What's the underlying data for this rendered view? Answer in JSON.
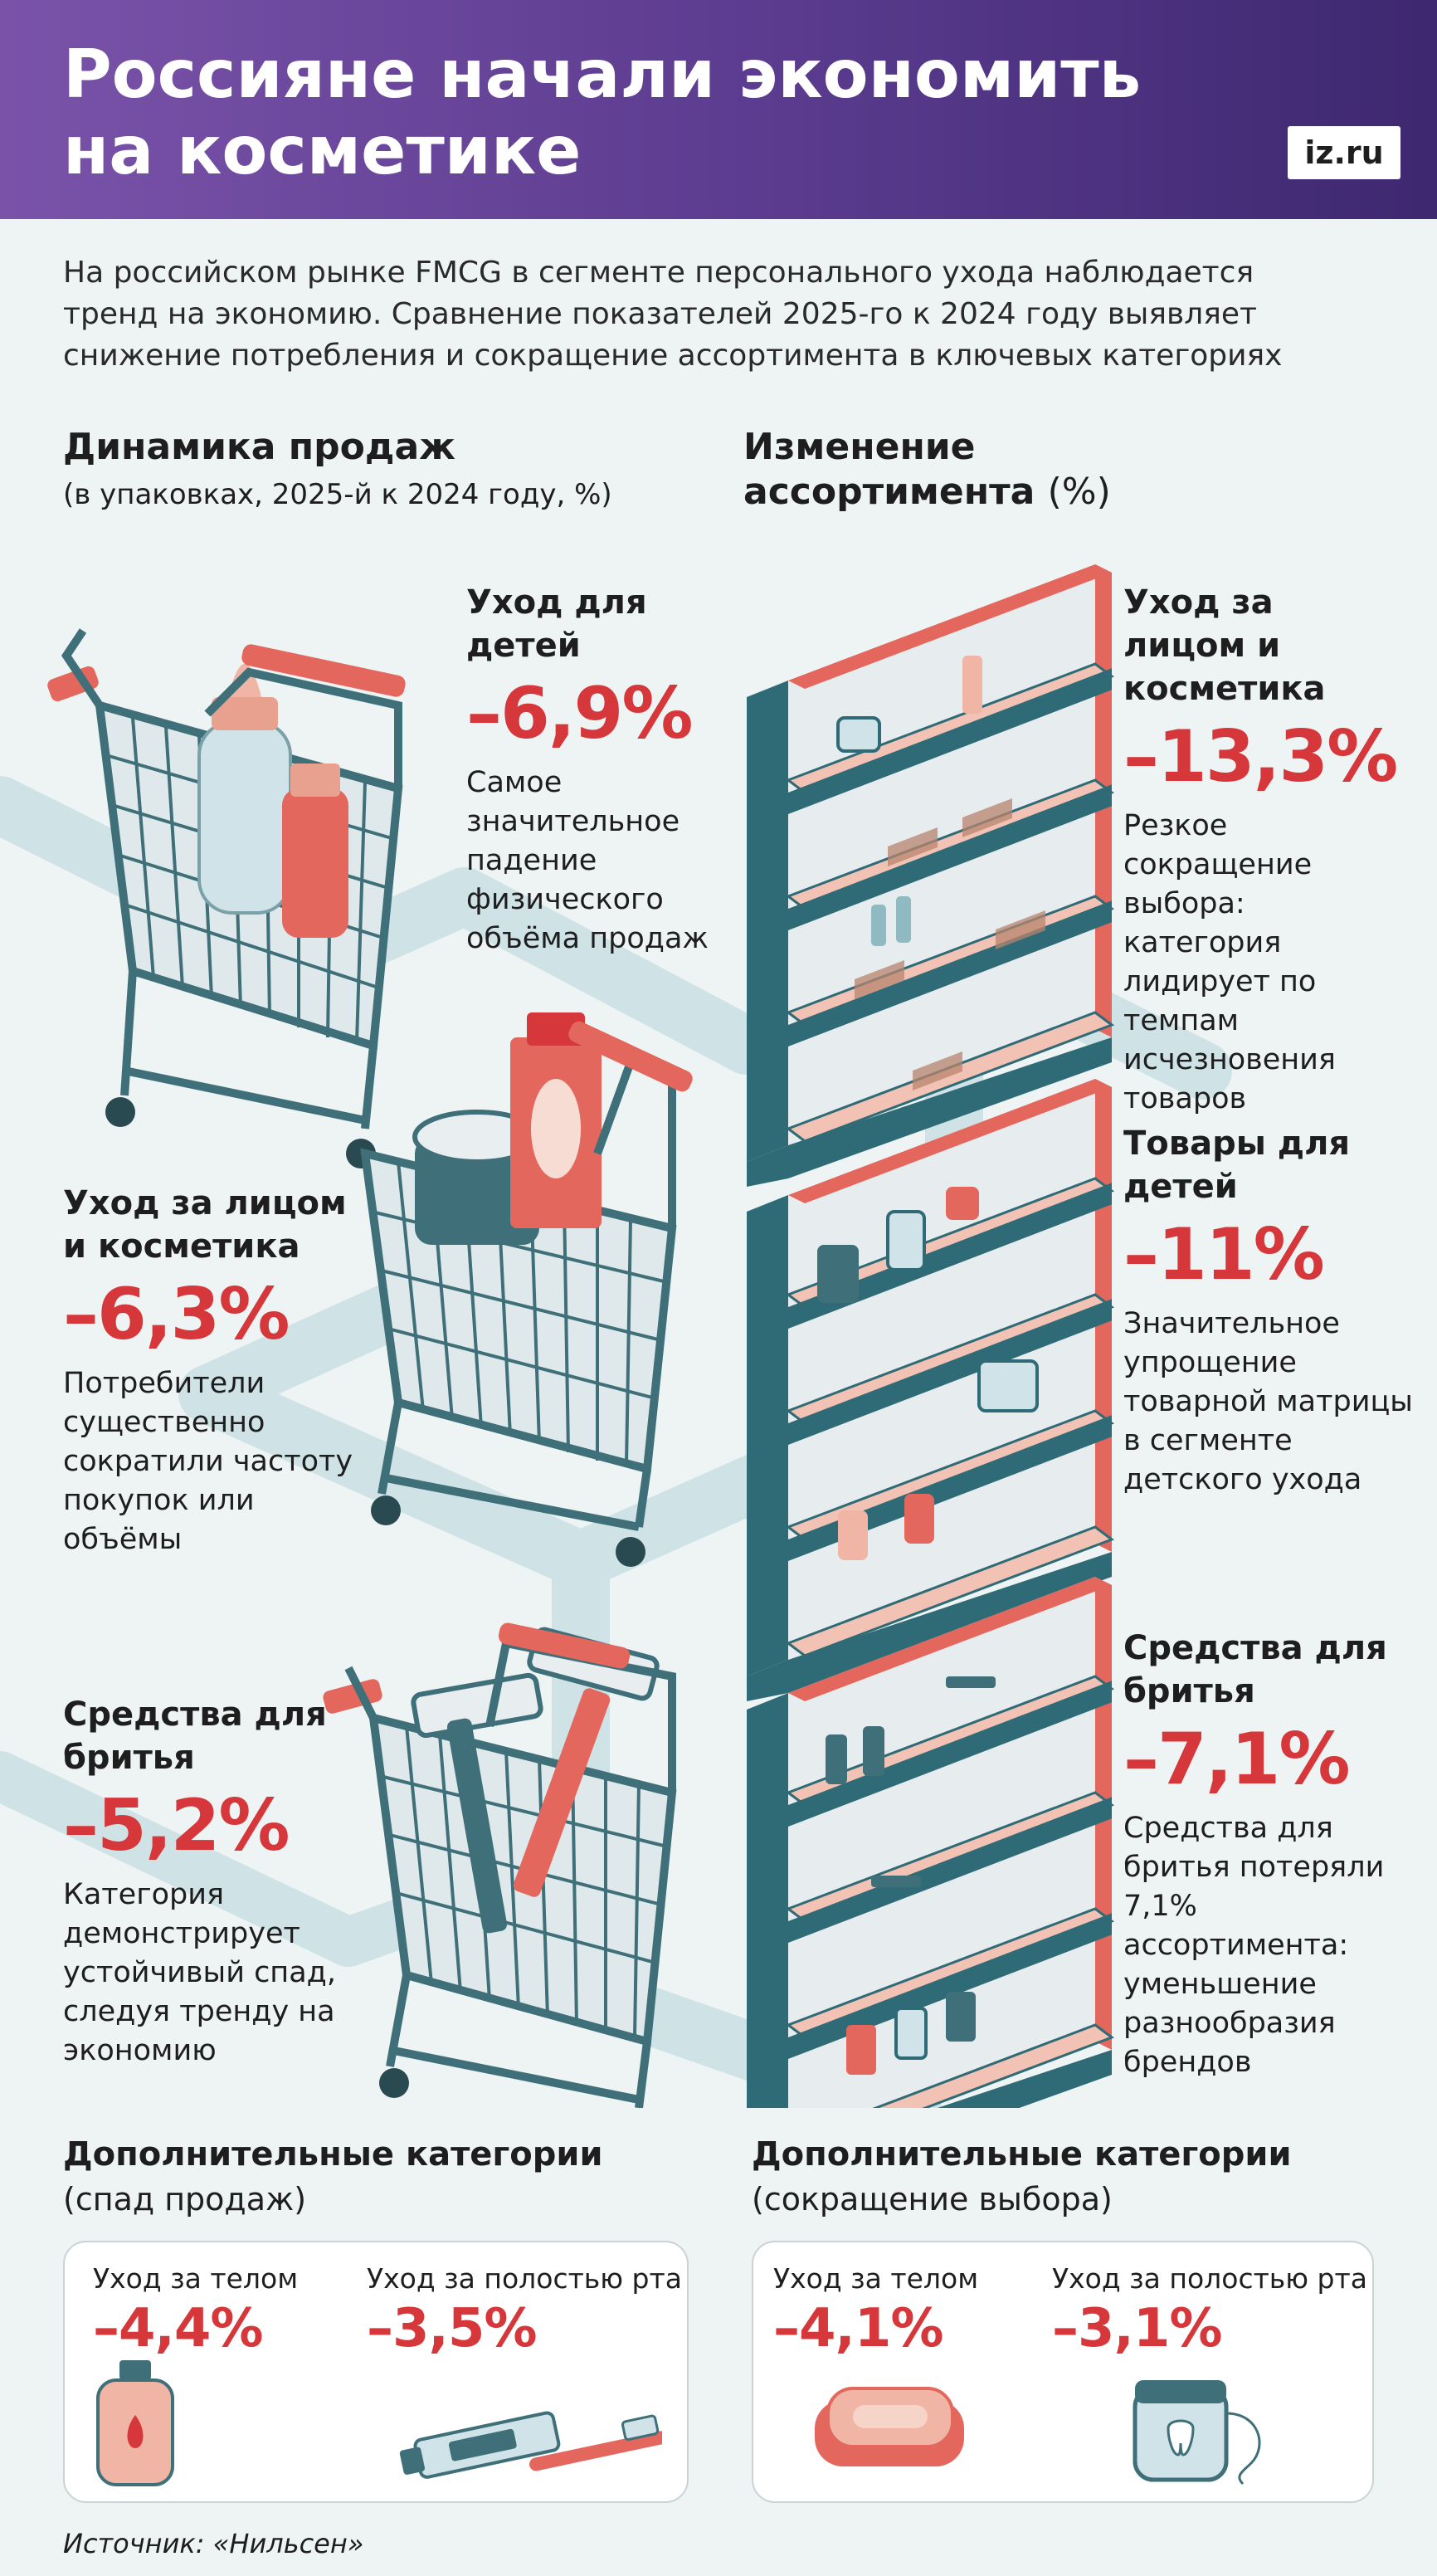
{
  "header": {
    "title_line1": "Россияне начали экономить",
    "title_line2": "на косметике",
    "logo": "iz.ru"
  },
  "intro": "На российском рынке FMCG в сегменте персонального ухода наблюдается тренд на экономию. Сравнение показателей 2025-го к 2024 году выявляет снижение потребления и сокращение ассортимента в ключевых категориях",
  "sales": {
    "heading": "Динамика продаж",
    "subheading": "(в упаковках, 2025-й к 2024 году, %)",
    "items": [
      {
        "category": "Уход для детей",
        "value": "–6,9%",
        "description": "Самое значительное падение физического объёма продаж"
      },
      {
        "category": "Уход за лицом и косметика",
        "value": "–6,3%",
        "description": "Потребители существенно сократили частоту покупок или объёмы"
      },
      {
        "category": "Средства для бритья",
        "value": "–5,2%",
        "description": "Категория демонстрирует устойчивый спад, следуя тренду на экономию"
      }
    ]
  },
  "assortment": {
    "heading": "Изменение ассортимента",
    "unit": "(%)",
    "items": [
      {
        "category": "Уход за лицом и косметика",
        "value": "–13,3%",
        "description": "Резкое сокращение выбора: категория лидирует по темпам исчезновения товаров"
      },
      {
        "category": "Товары для детей",
        "value": "–11%",
        "description": "Значительное упрощение товарной матрицы в сегменте детского ухода"
      },
      {
        "category": "Средства для бритья",
        "value": "–7,1%",
        "description": "Средства для бритья потеряли 7,1% ассортимента: уменьшение разнообразия брендов"
      }
    ]
  },
  "additional_sales": {
    "heading": "Дополнительные категории",
    "subheading": "(спад продаж)",
    "items": [
      {
        "label": "Уход за телом",
        "value": "–4,4%"
      },
      {
        "label": "Уход за полостью рта",
        "value": "–3,5%"
      }
    ]
  },
  "additional_assortment": {
    "heading": "Дополнительные категории",
    "subheading": "(сокращение выбора)",
    "items": [
      {
        "label": "Уход за телом",
        "value": "–4,1%"
      },
      {
        "label": "Уход за полостью рта",
        "value": "–3,1%"
      }
    ]
  },
  "source": "Источник: «Нильсен»",
  "colors": {
    "accent_red": "#d6373a",
    "header_purple": "#5a3b8e",
    "background": "#eef3f4",
    "path": "#cfe3e6",
    "cart_metal": "#3f6f78",
    "shelf_teal": "#2f6b76",
    "shelf_salmon": "#e49a8a"
  },
  "icons": [
    "shopping-cart-icon",
    "store-shelf-icon",
    "baby-bottle-icon",
    "cream-jar-icon",
    "razor-icon",
    "body-lotion-icon",
    "toothbrush-icon",
    "soap-icon",
    "dental-floss-icon"
  ]
}
